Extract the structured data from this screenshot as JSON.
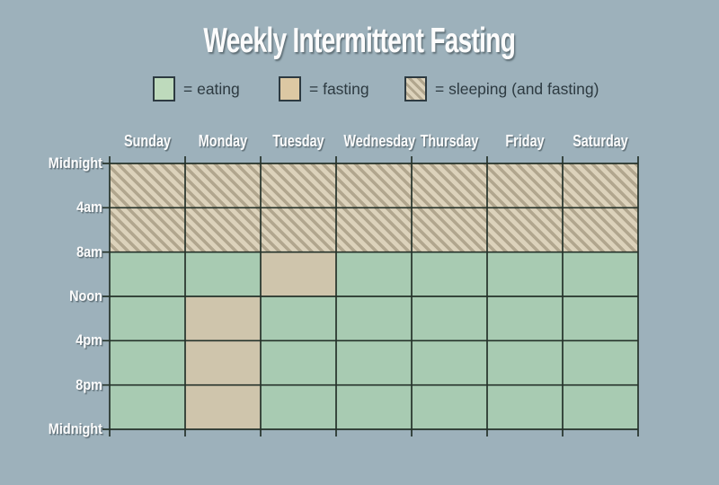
{
  "title": "Weekly Intermittent Fasting",
  "legend": {
    "items": [
      {
        "key": "eating",
        "label": "= eating"
      },
      {
        "key": "fasting",
        "label": "= fasting"
      },
      {
        "key": "sleeping",
        "label": "= sleeping (and fasting)"
      }
    ]
  },
  "chart_data": {
    "type": "heatmap",
    "title": "Weekly Intermittent Fasting",
    "columns": [
      "Sunday",
      "Monday",
      "Tuesday",
      "Wednesday",
      "Thursday",
      "Friday",
      "Saturday"
    ],
    "time_ticks": [
      "Midnight",
      "4am",
      "8am",
      "Noon",
      "4pm",
      "8pm",
      "Midnight"
    ],
    "legend_entries": [
      "eating",
      "fasting",
      "sleeping (and fasting)"
    ],
    "rows": [
      {
        "time": "Midnight-4am",
        "states": [
          "sleeping",
          "sleeping",
          "sleeping",
          "sleeping",
          "sleeping",
          "sleeping",
          "sleeping"
        ]
      },
      {
        "time": "4am-8am",
        "states": [
          "sleeping",
          "sleeping",
          "sleeping",
          "sleeping",
          "sleeping",
          "sleeping",
          "sleeping"
        ]
      },
      {
        "time": "8am-Noon",
        "states": [
          "eating",
          "eating",
          "fasting",
          "eating",
          "eating",
          "eating",
          "eating"
        ]
      },
      {
        "time": "Noon-4pm",
        "states": [
          "eating",
          "fasting",
          "eating",
          "eating",
          "eating",
          "eating",
          "eating"
        ]
      },
      {
        "time": "4pm-8pm",
        "states": [
          "eating",
          "fasting",
          "eating",
          "eating",
          "eating",
          "eating",
          "eating"
        ]
      },
      {
        "time": "8pm-Midnight",
        "states": [
          "eating",
          "fasting",
          "eating",
          "eating",
          "eating",
          "eating",
          "eating"
        ]
      }
    ],
    "grid": "on",
    "legend_position": "top"
  },
  "colors": {
    "background": "#9db1bb",
    "eating": "#a8cbb2",
    "fasting": "#cfc5ac",
    "legend_eating": "#bedabc",
    "legend_fasting": "#dcc8a3",
    "hatch_light": "#dcd2bb",
    "hatch_dark": "#b1a68e",
    "grid_line": "#25322a",
    "label_text": "#fcfcfc",
    "legend_text": "#2d3a41"
  }
}
